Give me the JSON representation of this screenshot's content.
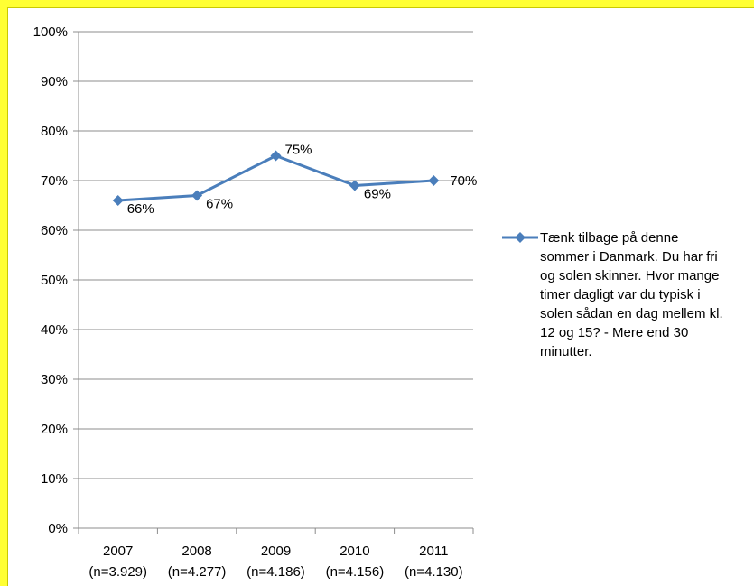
{
  "chart_data": {
    "type": "line",
    "categories": [
      "2007\n(n=3.929)",
      "2008\n(n=4.277)",
      "2009\n(n=4.186)",
      "2010\n(n=4.156)",
      "2011\n(n=4.130)"
    ],
    "category_years": [
      "2007",
      "2008",
      "2009",
      "2010",
      "2011"
    ],
    "category_counts": [
      "(n=3.929)",
      "(n=4.277)",
      "(n=4.186)",
      "(n=4.156)",
      "(n=4.130)"
    ],
    "series": [
      {
        "name": "Tænk tilbage på denne sommer i Danmark. Du har fri og solen skinner. Hvor mange timer dagligt var du typisk i solen sådan en dag mellem kl. 12 og 15? - Mere end 30 minutter.",
        "values": [
          66,
          67,
          75,
          69,
          70
        ],
        "data_labels": [
          "66%",
          "67%",
          "75%",
          "69%",
          "70%"
        ],
        "color": "#4a7ebb",
        "marker": "diamond"
      }
    ],
    "ylim": [
      0,
      100
    ],
    "yticks": [
      0,
      10,
      20,
      30,
      40,
      50,
      60,
      70,
      80,
      90,
      100
    ],
    "ytick_labels": [
      "0%",
      "10%",
      "20%",
      "30%",
      "40%",
      "50%",
      "60%",
      "70%",
      "80%",
      "90%",
      "100%"
    ],
    "grid": true,
    "legend_position": "right",
    "title": "",
    "xlabel": "",
    "ylabel": ""
  },
  "colors": {
    "background_border": "#ffff33",
    "plot_background": "#ffffff",
    "gridline": "#8c8c8c",
    "series": "#4a7ebb"
  }
}
